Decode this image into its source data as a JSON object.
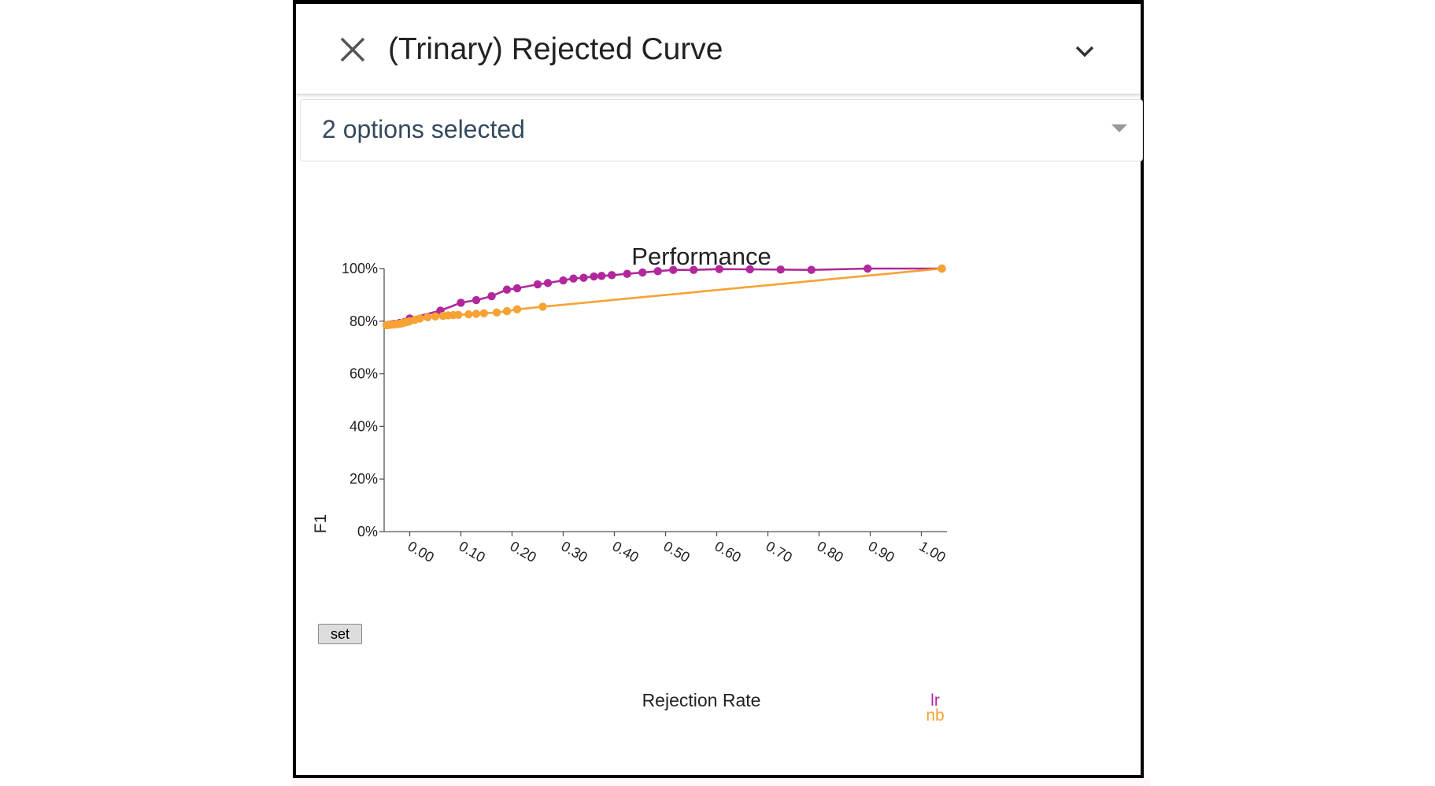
{
  "header": {
    "title": "(Trinary) Rejected Curve",
    "close_icon": "close-icon",
    "collapse_icon": "chevron-down-icon"
  },
  "select": {
    "value": "2 options selected",
    "caret_icon": "caret-down-icon"
  },
  "set_button": {
    "label": "set"
  },
  "colors": {
    "lr": "#b0289b",
    "nb": "#f7a234"
  },
  "chart_data": {
    "type": "line",
    "title": "Performance",
    "xlabel": "Rejection Rate",
    "ylabel": "F1",
    "xlim": [
      -0.05,
      1.05
    ],
    "ylim": [
      0,
      1
    ],
    "x_ticks": [
      "0.00",
      "0.10",
      "0.20",
      "0.30",
      "0.40",
      "0.50",
      "0.60",
      "0.70",
      "0.80",
      "0.90",
      "1.00"
    ],
    "y_ticks": [
      "0%",
      "20%",
      "40%",
      "60%",
      "80%",
      "100%"
    ],
    "legend": [
      "lr",
      "nb"
    ],
    "legend_position": "bottom-right",
    "series": [
      {
        "name": "lr",
        "color": "#b0289b",
        "points": [
          [
            -0.045,
            0.785
          ],
          [
            -0.04,
            0.787
          ],
          [
            -0.035,
            0.788
          ],
          [
            -0.03,
            0.79
          ],
          [
            -0.02,
            0.793
          ],
          [
            -0.01,
            0.797
          ],
          [
            0.0,
            0.81
          ],
          [
            0.06,
            0.84
          ],
          [
            0.1,
            0.87
          ],
          [
            0.13,
            0.88
          ],
          [
            0.16,
            0.895
          ],
          [
            0.19,
            0.92
          ],
          [
            0.21,
            0.925
          ],
          [
            0.25,
            0.94
          ],
          [
            0.27,
            0.945
          ],
          [
            0.3,
            0.955
          ],
          [
            0.32,
            0.962
          ],
          [
            0.34,
            0.965
          ],
          [
            0.36,
            0.97
          ],
          [
            0.375,
            0.972
          ],
          [
            0.395,
            0.975
          ],
          [
            0.425,
            0.98
          ],
          [
            0.455,
            0.985
          ],
          [
            0.485,
            0.99
          ],
          [
            0.515,
            0.995
          ],
          [
            0.555,
            0.995
          ],
          [
            0.605,
            0.998
          ],
          [
            0.665,
            0.997
          ],
          [
            0.725,
            0.996
          ],
          [
            0.785,
            0.995
          ],
          [
            0.895,
            1.0
          ],
          [
            1.04,
            1.0
          ]
        ]
      },
      {
        "name": "nb",
        "color": "#f7a234",
        "points": [
          [
            -0.045,
            0.785
          ],
          [
            -0.04,
            0.786
          ],
          [
            -0.035,
            0.787
          ],
          [
            -0.03,
            0.788
          ],
          [
            -0.025,
            0.789
          ],
          [
            -0.02,
            0.79
          ],
          [
            -0.015,
            0.792
          ],
          [
            -0.01,
            0.795
          ],
          [
            -0.005,
            0.797
          ],
          [
            0.0,
            0.8
          ],
          [
            0.01,
            0.805
          ],
          [
            0.02,
            0.81
          ],
          [
            0.035,
            0.815
          ],
          [
            0.05,
            0.818
          ],
          [
            0.065,
            0.82
          ],
          [
            0.075,
            0.822
          ],
          [
            0.085,
            0.823
          ],
          [
            0.095,
            0.824
          ],
          [
            0.115,
            0.826
          ],
          [
            0.13,
            0.828
          ],
          [
            0.145,
            0.83
          ],
          [
            0.17,
            0.833
          ],
          [
            0.19,
            0.838
          ],
          [
            0.21,
            0.845
          ],
          [
            0.26,
            0.855
          ],
          [
            1.04,
            1.0
          ]
        ]
      }
    ]
  }
}
